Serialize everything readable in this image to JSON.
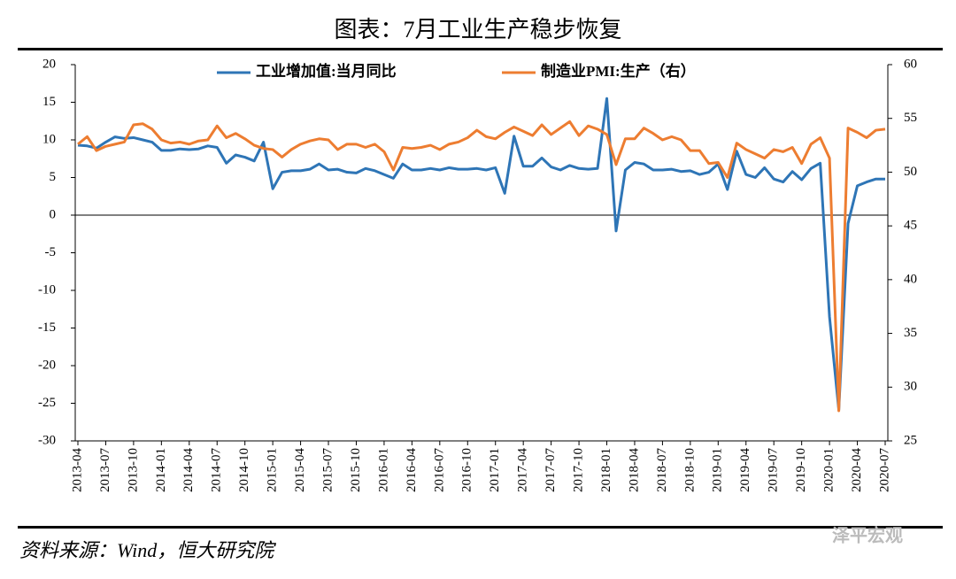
{
  "chart_data": {
    "type": "line",
    "title": "图表：7月工业生产稳步恢复",
    "source": "资料来源：Wind，恒大研究院",
    "watermark": "泽平宏观",
    "categories": [
      "2013-04",
      null,
      null,
      "2013-07",
      null,
      null,
      "2013-10",
      null,
      null,
      "2014-01",
      null,
      null,
      "2014-04",
      null,
      null,
      "2014-07",
      null,
      null,
      "2014-10",
      null,
      null,
      "2015-01",
      null,
      null,
      "2015-04",
      null,
      null,
      "2015-07",
      null,
      null,
      "2015-10",
      null,
      null,
      "2016-01",
      null,
      null,
      "2016-04",
      null,
      null,
      "2016-07",
      null,
      null,
      "2016-10",
      null,
      null,
      "2017-01",
      null,
      null,
      "2017-04",
      null,
      null,
      "2017-07",
      null,
      null,
      "2017-10",
      null,
      null,
      "2018-01",
      null,
      null,
      "2018-04",
      null,
      null,
      "2018-07",
      null,
      null,
      "2018-10",
      null,
      null,
      "2019-01",
      null,
      null,
      "2019-04",
      null,
      null,
      "2019-07",
      null,
      null,
      "2019-10",
      null,
      null,
      "2020-01",
      null,
      null,
      "2020-04",
      null,
      null,
      "2020-07"
    ],
    "series": [
      {
        "name": "工业增加值:当月同比",
        "color": "#2e75b6",
        "axis": "y",
        "values": [
          9.3,
          9.2,
          8.9,
          9.7,
          10.4,
          10.2,
          10.3,
          10.0,
          9.7,
          8.6,
          8.6,
          8.8,
          8.7,
          8.8,
          9.2,
          9.0,
          6.9,
          8.0,
          7.7,
          7.2,
          9.7,
          3.5,
          5.7,
          5.9,
          5.9,
          6.1,
          6.8,
          6.0,
          6.1,
          5.7,
          5.6,
          6.2,
          5.9,
          5.4,
          4.9,
          6.8,
          6.0,
          6.0,
          6.2,
          6.0,
          6.3,
          6.1,
          6.1,
          6.2,
          6.0,
          6.3,
          2.9,
          10.5,
          6.5,
          6.5,
          7.6,
          6.4,
          6.0,
          6.6,
          6.2,
          6.1,
          6.2,
          15.5,
          -2.1,
          6.0,
          7.0,
          6.8,
          6.0,
          6.0,
          6.1,
          5.8,
          5.9,
          5.4,
          5.7,
          6.8,
          3.4,
          8.5,
          5.4,
          5.0,
          6.3,
          4.8,
          4.4,
          5.8,
          4.7,
          6.2,
          6.9,
          -13.5,
          -25.9,
          -1.1,
          3.9,
          4.4,
          4.8,
          4.8
        ]
      },
      {
        "name": "制造业PMI:生产（右）",
        "color": "#ed7d31",
        "axis": "y2",
        "values": [
          52.6,
          53.3,
          52.0,
          52.4,
          52.6,
          52.8,
          54.4,
          54.5,
          54.0,
          53.0,
          52.7,
          52.8,
          52.6,
          52.9,
          53.0,
          54.3,
          53.2,
          53.6,
          53.1,
          52.5,
          52.2,
          52.1,
          51.4,
          52.1,
          52.6,
          52.9,
          53.1,
          53.0,
          52.1,
          52.6,
          52.6,
          52.3,
          52.6,
          51.9,
          50.2,
          52.3,
          52.2,
          52.3,
          52.5,
          52.1,
          52.6,
          52.8,
          53.2,
          53.9,
          53.3,
          53.1,
          53.7,
          54.2,
          53.8,
          53.4,
          54.4,
          53.5,
          54.1,
          54.7,
          53.4,
          54.3,
          54.0,
          53.5,
          50.7,
          53.1,
          53.1,
          54.1,
          53.6,
          53.0,
          53.3,
          53.0,
          52.0,
          52.0,
          50.8,
          50.9,
          49.5,
          52.7,
          52.1,
          51.7,
          51.3,
          52.1,
          51.9,
          52.3,
          50.8,
          52.6,
          53.2,
          51.3,
          27.8,
          54.1,
          53.7,
          53.2,
          53.9,
          54.0
        ]
      }
    ],
    "ylim": [
      -30,
      20
    ],
    "yticks": [
      -30,
      -25,
      -20,
      -15,
      -10,
      -5,
      0,
      5,
      10,
      15,
      20
    ],
    "y2lim": [
      25,
      60
    ],
    "y2ticks": [
      25,
      30,
      35,
      40,
      45,
      50,
      55,
      60
    ],
    "legend": "top"
  }
}
